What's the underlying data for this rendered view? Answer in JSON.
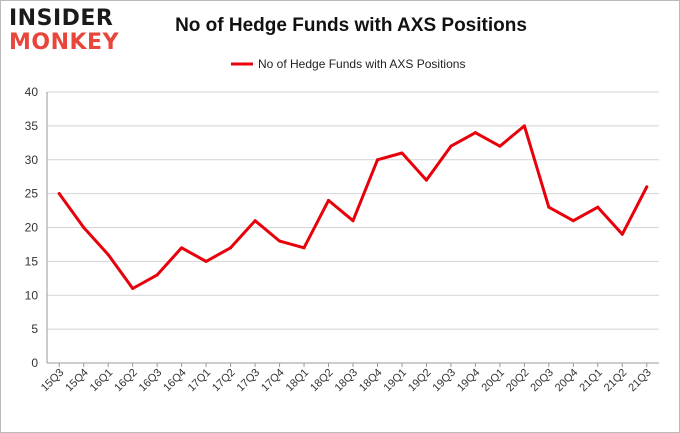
{
  "logo": {
    "line1": "INSIDER",
    "line2": "MONKEY"
  },
  "chart_data": {
    "type": "line",
    "title": "No of Hedge Funds with AXS Positions",
    "categories": [
      "15Q3",
      "15Q4",
      "16Q1",
      "16Q2",
      "16Q3",
      "16Q4",
      "17Q1",
      "17Q2",
      "17Q3",
      "17Q4",
      "18Q1",
      "18Q2",
      "18Q3",
      "18Q4",
      "19Q1",
      "19Q2",
      "19Q3",
      "19Q4",
      "20Q1",
      "20Q2",
      "20Q3",
      "20Q4",
      "21Q1",
      "21Q2",
      "21Q3"
    ],
    "series": [
      {
        "name": "No of Hedge Funds with AXS Positions",
        "color": "#e8000b",
        "values": [
          25,
          20,
          16,
          11,
          13,
          17,
          15,
          17,
          21,
          18,
          17,
          24,
          21,
          30,
          31,
          27,
          32,
          34,
          32,
          35,
          23,
          21,
          23,
          19,
          26
        ]
      }
    ],
    "ylim": [
      0,
      40
    ],
    "yticks": [
      0,
      5,
      10,
      15,
      20,
      25,
      30,
      35,
      40
    ],
    "grid": true,
    "legend": "top"
  }
}
